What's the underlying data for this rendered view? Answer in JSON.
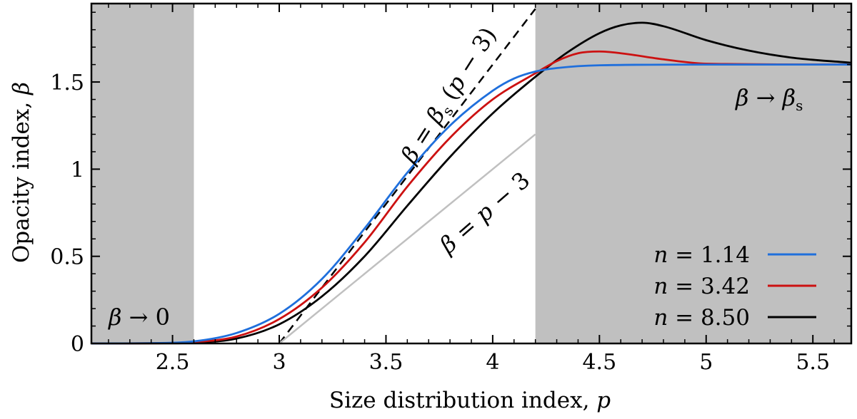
{
  "chart_data": {
    "type": "line",
    "xlabel": "Size distribution index, p",
    "ylabel": "Opacity index, β",
    "xlim": [
      2.12,
      5.68
    ],
    "ylim": [
      0,
      1.95
    ],
    "xticks": [
      "2.5",
      "3",
      "3.5",
      "4",
      "4.5",
      "5",
      "5.5"
    ],
    "yticks": [
      "0",
      "0.5",
      "1",
      "1.5"
    ],
    "shaded_regions": [
      {
        "from": 2.12,
        "to": 2.6,
        "color": "#c0c0c0"
      },
      {
        "from": 4.2,
        "to": 5.68,
        "color": "#c0c0c0"
      }
    ],
    "reference_lines": [
      {
        "name": "β = βs (p − 3)",
        "x": [
          3.0,
          4.2
        ],
        "y": [
          0,
          1.92
        ],
        "style": "dashed",
        "color": "#000000"
      },
      {
        "name": "β = p − 3",
        "x": [
          3.0,
          4.2
        ],
        "y": [
          0,
          1.2
        ],
        "style": "solid",
        "color": "#c0c0c0"
      }
    ],
    "series": [
      {
        "name": "n = 1.14",
        "color": "#1f6fdc",
        "x": [
          2.12,
          2.4,
          2.6,
          2.8,
          3.0,
          3.2,
          3.4,
          3.6,
          3.8,
          4.0,
          4.1,
          4.2,
          4.3,
          4.5,
          5.0,
          5.68
        ],
        "y": [
          0,
          0.002,
          0.012,
          0.06,
          0.17,
          0.37,
          0.66,
          0.98,
          1.25,
          1.45,
          1.52,
          1.56,
          1.58,
          1.596,
          1.6,
          1.6
        ]
      },
      {
        "name": "n = 3.42",
        "color": "#cc1111",
        "x": [
          2.12,
          2.4,
          2.6,
          2.8,
          3.0,
          3.2,
          3.4,
          3.6,
          3.8,
          4.0,
          4.2,
          4.3,
          4.4,
          4.5,
          4.6,
          4.8,
          5.0,
          5.68
        ],
        "y": [
          0,
          0.001,
          0.008,
          0.04,
          0.14,
          0.32,
          0.58,
          0.9,
          1.18,
          1.4,
          1.55,
          1.62,
          1.665,
          1.675,
          1.665,
          1.63,
          1.605,
          1.6
        ]
      },
      {
        "name": "n = 8.50",
        "color": "#000000",
        "x": [
          2.12,
          2.5,
          2.6,
          2.8,
          3.0,
          3.2,
          3.4,
          3.6,
          3.8,
          4.0,
          4.2,
          4.35,
          4.5,
          4.6,
          4.7,
          4.8,
          5.0,
          5.2,
          5.4,
          5.68
        ],
        "y": [
          0,
          0.001,
          0.004,
          0.028,
          0.11,
          0.27,
          0.5,
          0.79,
          1.07,
          1.32,
          1.53,
          1.67,
          1.78,
          1.825,
          1.84,
          1.82,
          1.74,
          1.68,
          1.64,
          1.61
        ]
      }
    ],
    "annotations": {
      "dashed_line_label": "β = βs (p − 3)",
      "grey_line_label": "β = p − 3",
      "left_limit": "β → 0",
      "right_limit": "β → βs"
    },
    "legend": {
      "position": "bottom-right",
      "entries": [
        "n = 1.14",
        "n = 3.42",
        "n = 8.50"
      ]
    }
  }
}
